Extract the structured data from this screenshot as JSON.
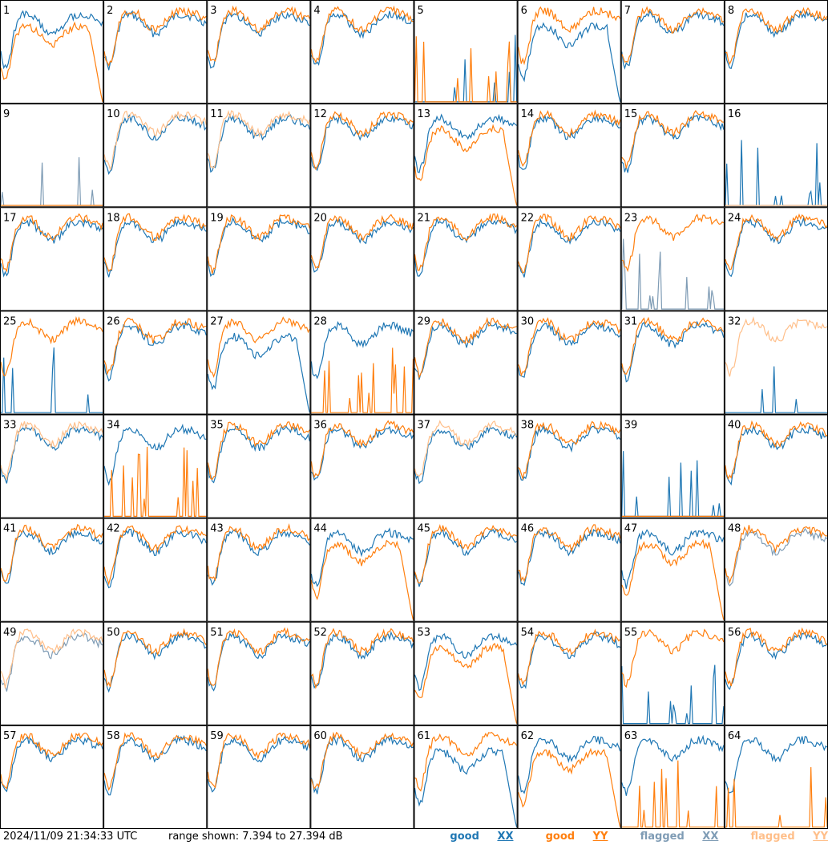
{
  "chart_data": {
    "type": "line",
    "grid": {
      "rows": 8,
      "cols": 8
    },
    "panel_numbers": [
      1,
      2,
      3,
      4,
      5,
      6,
      7,
      8,
      9,
      10,
      11,
      12,
      13,
      14,
      15,
      16,
      17,
      18,
      19,
      20,
      21,
      22,
      23,
      24,
      25,
      26,
      27,
      28,
      29,
      30,
      31,
      32,
      33,
      34,
      35,
      36,
      37,
      38,
      39,
      40,
      41,
      42,
      43,
      44,
      45,
      46,
      47,
      48,
      49,
      50,
      51,
      52,
      53,
      54,
      55,
      56,
      57,
      58,
      59,
      60,
      61,
      62,
      63,
      64
    ],
    "series": [
      {
        "name": "good XX",
        "color": "#1f77b4"
      },
      {
        "name": "good YY",
        "color": "#ff7f0e"
      },
      {
        "name": "flagged XX",
        "color": "#7f9cb5"
      },
      {
        "name": "flagged YY",
        "color": "#ffbf8a"
      }
    ],
    "y_range_db": [
      7.394,
      27.394
    ],
    "flagged_xx_panels": [
      9,
      23,
      48,
      49
    ],
    "flagged_yy_panels": [
      10,
      11,
      16,
      32,
      33,
      37,
      49
    ],
    "dead_yy_panels": [
      9,
      16,
      39
    ],
    "spiky_xx_panels": [
      5,
      9,
      16,
      23,
      25,
      32,
      39,
      55
    ],
    "spiky_yy_panels": [
      5,
      28,
      34,
      63,
      64
    ],
    "rolloff_xx_panels": [
      6,
      27,
      61
    ],
    "rolloff_yy_panels": [
      1,
      13,
      44,
      47,
      53,
      62
    ]
  },
  "footer": {
    "timestamp": "2024/11/09 21:34:33 UTC",
    "range_text": "range shown: 7.394 to 27.394 dB",
    "legend": [
      {
        "prefix": "good",
        "pol": "XX"
      },
      {
        "prefix": "good",
        "pol": "YY"
      },
      {
        "prefix": "flagged",
        "pol": "XX"
      },
      {
        "prefix": "flagged",
        "pol": "YY"
      }
    ]
  }
}
